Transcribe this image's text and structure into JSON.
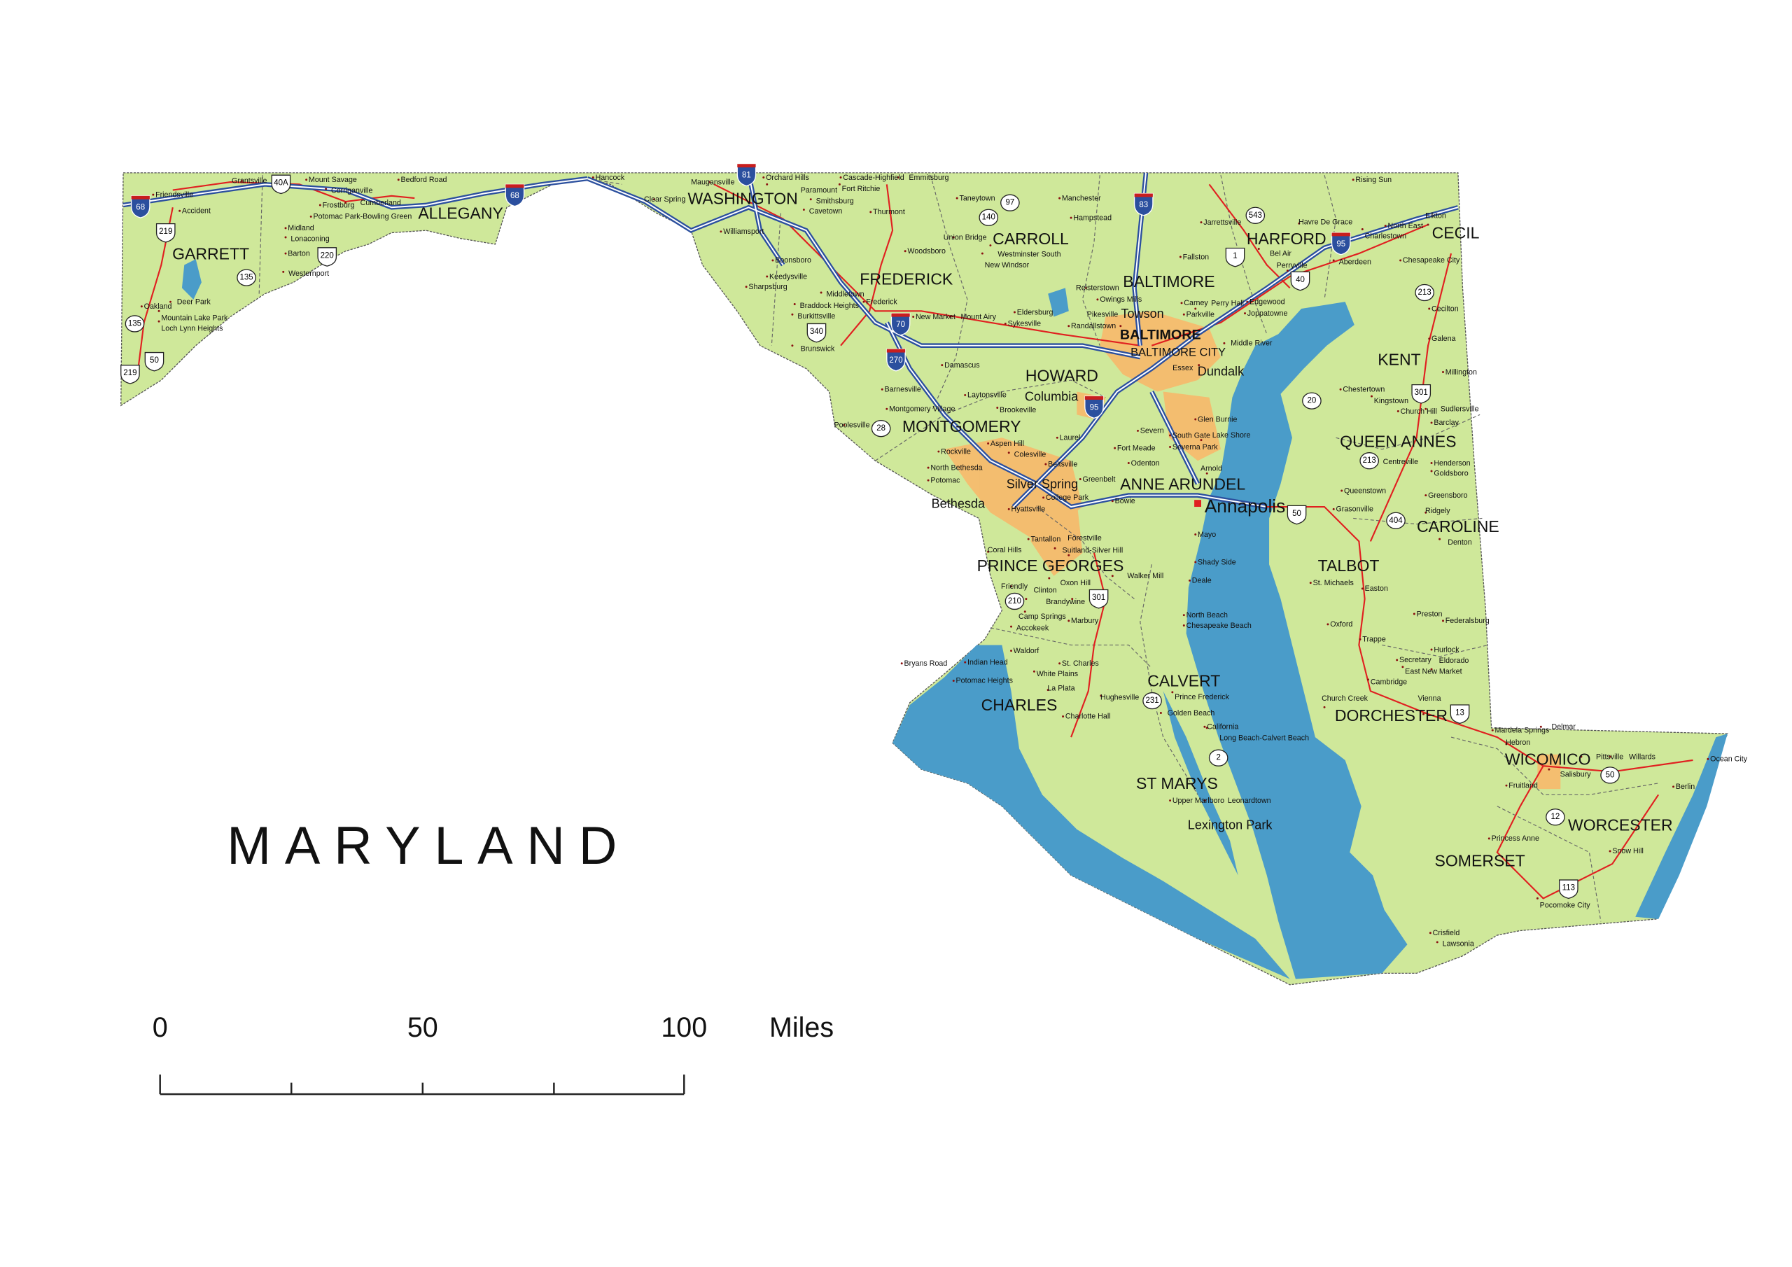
{
  "title": "MARYLAND",
  "scale_bar": {
    "ticks": [
      "0",
      "50",
      "100"
    ],
    "unit": "Miles"
  },
  "colors": {
    "land": "#cfe89a",
    "water": "#4a9cc9",
    "urban": "#f7b96b",
    "interstate": "#2b4f9e",
    "us_route": "#e02020",
    "boundary": "#666666"
  },
  "counties": [
    "GARRETT",
    "ALLEGANY",
    "WASHINGTON",
    "FREDERICK",
    "CARROLL",
    "BALTIMORE",
    "HARFORD",
    "CECIL",
    "BALTIMORE CITY",
    "HOWARD",
    "KENT",
    "MONTGOMERY",
    "QUEEN ANNES",
    "ANNE ARUNDEL",
    "CAROLINE",
    "TALBOT",
    "PRINCE GEORGES",
    "CALVERT",
    "CHARLES",
    "DORCHESTER",
    "WICOMICO",
    "ST MARYS",
    "WORCESTER",
    "SOMERSET"
  ],
  "major_cities": [
    "BALTIMORE",
    "Annapolis",
    "Columbia",
    "Lexington Park",
    "Towson",
    "Dundalk",
    "Silver Spring",
    "Bethesda"
  ],
  "cities": [
    "Friendsville",
    "Accident",
    "Oakland",
    "Deer Park",
    "Mountain Lake Park",
    "Loch Lynn Heights",
    "Grantsville",
    "Mount Savage",
    "Corriganville",
    "Bedford Road",
    "Frostburg",
    "Cumberland",
    "Midland",
    "Lonaconing",
    "Barton",
    "Westernport",
    "Potomac Park-Bowling Green",
    "Hancock",
    "Clear Spring",
    "Maugansville",
    "Orchard Hills",
    "Paramount",
    "Smithsburg",
    "Cavetown",
    "Williamsport",
    "Boonsboro",
    "Keedysville",
    "Sharpsburg",
    "Middletown",
    "Braddock Heights",
    "Frederick",
    "Burkittsville",
    "Brunswick",
    "Cascade-Highfield",
    "Fort Ritchie",
    "Emmitsburg",
    "Thurmont",
    "Woodsboro",
    "Taneytown",
    "Union Bridge",
    "Westminster South",
    "New Windsor",
    "Manchester",
    "Hampstead",
    "New Market",
    "Mount Airy",
    "Sykesville",
    "Eldersburg",
    "Damascus",
    "Barnesville",
    "Laytonsville",
    "Poolesville",
    "Montgomery Village",
    "Brookeville",
    "Aspen Hill",
    "Rockville",
    "North Bethesda",
    "Potomac",
    "Colesville",
    "Laurel",
    "Beltsville",
    "Greenbelt",
    "College Park",
    "Hyattsville",
    "Bowie",
    "Reisterstown",
    "Owings Mills",
    "Randallstown",
    "Pikesville",
    "Parkville",
    "Carney",
    "Essex",
    "Middle River",
    "Perry Hall",
    "Edgewood",
    "Joppatowne",
    "Fallston",
    "Bel Air",
    "Jarrettsville",
    "Aberdeen",
    "Havre De Grace",
    "Perryville",
    "Elkton",
    "North East",
    "Charlestown",
    "Chesapeake City",
    "Rising Sun",
    "Cecilton",
    "Galena",
    "Millington",
    "Chestertown",
    "Kingstown",
    "Church Hill",
    "Sudlersville",
    "Barclay",
    "Centreville",
    "Queenstown",
    "Grasonville",
    "Henderson",
    "Goldsboro",
    "Greensboro",
    "Ridgely",
    "Denton",
    "Easton",
    "St. Michaels",
    "Oxford",
    "Trappe",
    "Preston",
    "Federalsburg",
    "Hurlock",
    "Secretary",
    "East New Market",
    "Eldorado",
    "Cambridge",
    "Church Creek",
    "Vienna",
    "Mardela Springs",
    "Delmar",
    "Hebron",
    "Salisbury",
    "Fruitland",
    "Pittsville",
    "Willards",
    "Ocean City",
    "Berlin",
    "Princess Anne",
    "Snow Hill",
    "Pocomoke City",
    "Crisfield",
    "Lawsonia",
    "Glen Burnie",
    "Severna Park",
    "Odenton",
    "Fort Meade",
    "Severn",
    "South Gate",
    "Lake Shore",
    "Arnold",
    "Mayo",
    "Shady Side",
    "Deale",
    "North Beach",
    "Chesapeake Beach",
    "Prince Frederick",
    "Golden Beach",
    "Hughesville",
    "Charlotte Hall",
    "La Plata",
    "St. Charles",
    "White Plains",
    "Waldorf",
    "Bryans Road",
    "Indian Head",
    "Potomac Heights",
    "Marbury",
    "Brandywine",
    "Clinton",
    "Friendly",
    "Oxon Hill",
    "Camp Springs",
    "Accokeek",
    "Tantallon",
    "Coral Hills",
    "Suitland-Silver Hill",
    "Forestville",
    "Walker Mill",
    "Upper Marlboro",
    "Leonardtown",
    "California",
    "Long Beach-Calvert Beach"
  ],
  "shields": {
    "interstate": [
      "68",
      "68",
      "81",
      "70",
      "270",
      "95",
      "83",
      "95"
    ],
    "us": [
      "40A",
      "219",
      "219",
      "220",
      "50",
      "340",
      "40",
      "1",
      "301",
      "301",
      "50",
      "113",
      "13"
    ],
    "state": [
      "135",
      "135",
      "97",
      "140",
      "543",
      "213",
      "20",
      "213",
      "404",
      "28",
      "210",
      "231",
      "2",
      "12",
      "50"
    ]
  }
}
